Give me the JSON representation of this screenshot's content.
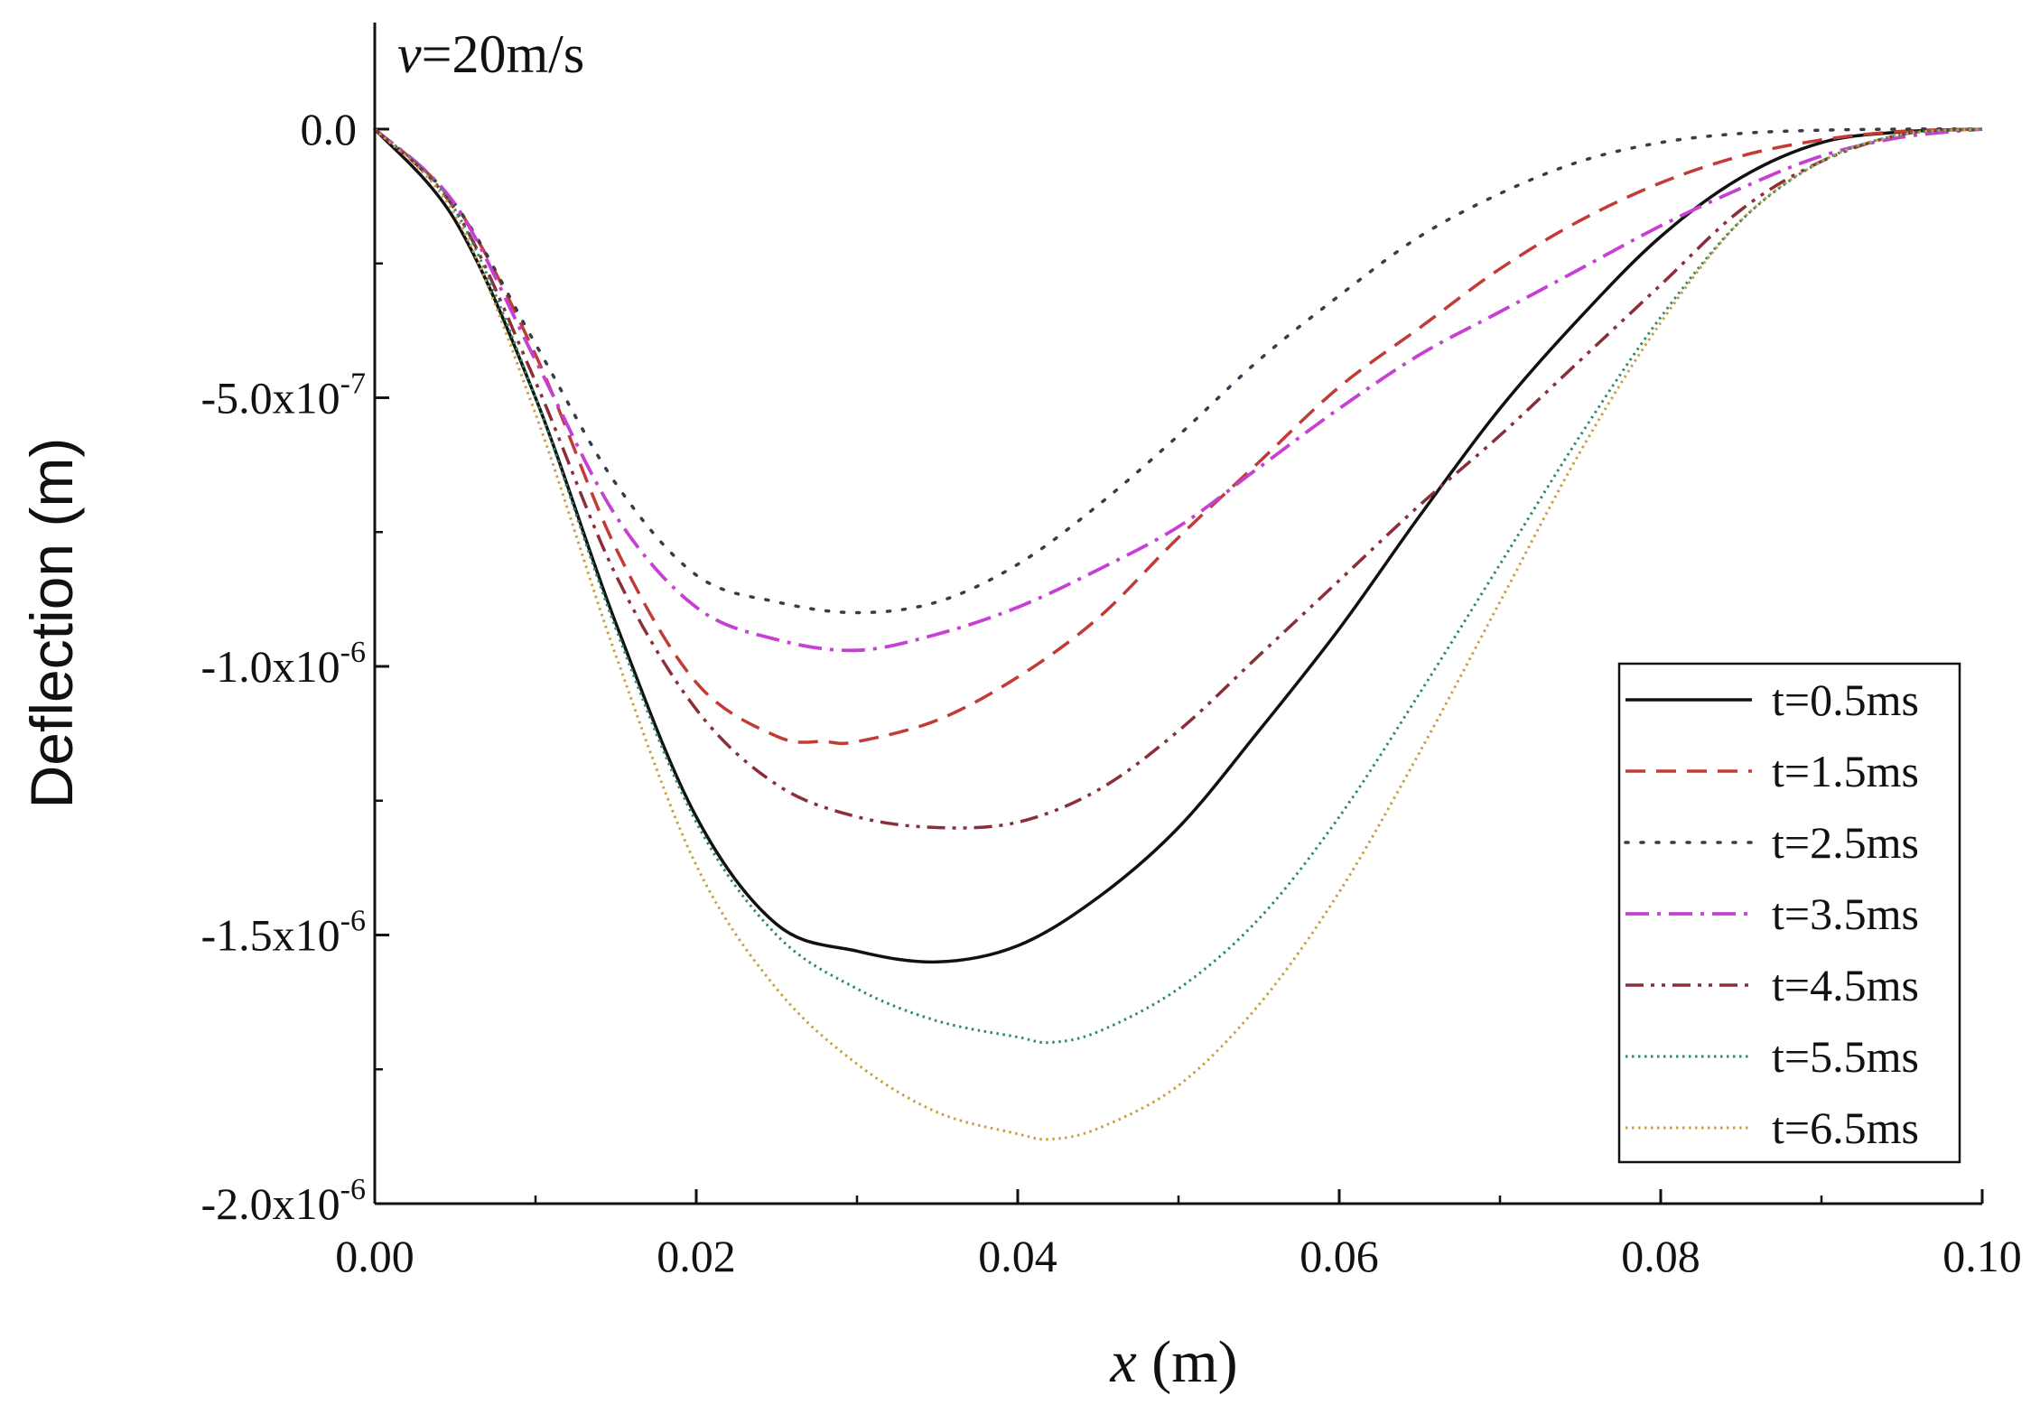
{
  "chart_data": {
    "type": "line",
    "title": "",
    "annotation": {
      "var": "v",
      "rest": "=20m/s"
    },
    "xlabel": {
      "var": "x",
      "rest": " (m)"
    },
    "ylabel": "Deflection (m)",
    "xlim": [
      0,
      0.1
    ],
    "ylim": [
      -2e-06,
      1.8e-07
    ],
    "xticks": [
      {
        "value": 0.0,
        "label": "0.00"
      },
      {
        "value": 0.02,
        "label": "0.02"
      },
      {
        "value": 0.04,
        "label": "0.04"
      },
      {
        "value": 0.06,
        "label": "0.06"
      },
      {
        "value": 0.08,
        "label": "0.08"
      },
      {
        "value": 0.1,
        "label": "0.10"
      }
    ],
    "yticks": [
      {
        "value": 0.0,
        "mant": "0.0",
        "exp": ""
      },
      {
        "value": -5e-07,
        "mant": "-5.0x10",
        "exp": "-7"
      },
      {
        "value": -1e-06,
        "mant": "-1.0x10",
        "exp": "-6"
      },
      {
        "value": -1.5e-06,
        "mant": "-1.5x10",
        "exp": "-6"
      },
      {
        "value": -2e-06,
        "mant": "-2.0x10",
        "exp": "-6"
      }
    ],
    "legend_position": "bottom-right",
    "series": [
      {
        "name": "t=0.5ms",
        "color": "#111111",
        "dash": "solid",
        "x": [
          0,
          0.005,
          0.01,
          0.015,
          0.02,
          0.025,
          0.03,
          0.035,
          0.04,
          0.045,
          0.05,
          0.055,
          0.06,
          0.065,
          0.07,
          0.075,
          0.08,
          0.085,
          0.09,
          0.095,
          0.1
        ],
        "y": [
          0,
          -1.7e-07,
          -5e-07,
          -9.2e-07,
          -1.28e-06,
          -1.48e-06,
          -1.53e-06,
          -1.55e-06,
          -1.52e-06,
          -1.43e-06,
          -1.3e-06,
          -1.12e-06,
          -9.3e-07,
          -7.2e-07,
          -5.2e-07,
          -3.5e-07,
          -2e-07,
          -9e-08,
          -2.5e-08,
          -5e-09,
          0
        ]
      },
      {
        "name": "t=1.5ms",
        "color": "#c23b35",
        "dash": "long-dash",
        "x": [
          0,
          0.005,
          0.01,
          0.015,
          0.02,
          0.025,
          0.028,
          0.03,
          0.035,
          0.04,
          0.045,
          0.05,
          0.055,
          0.06,
          0.065,
          0.07,
          0.075,
          0.08,
          0.085,
          0.09,
          0.095,
          0.1
        ],
        "y": [
          0,
          -1.4e-07,
          -4.2e-07,
          -7.8e-07,
          -1.03e-06,
          -1.13e-06,
          -1.14e-06,
          -1.14e-06,
          -1.1e-06,
          -1.02e-06,
          -9.1e-07,
          -7.6e-07,
          -6.2e-07,
          -4.8e-07,
          -3.7e-07,
          -2.6e-07,
          -1.7e-07,
          -1e-07,
          -5e-08,
          -2e-08,
          -4e-09,
          0
        ]
      },
      {
        "name": "t=2.5ms",
        "color": "#3a3a4a",
        "dash": "dot",
        "x": [
          0,
          0.005,
          0.01,
          0.015,
          0.02,
          0.025,
          0.03,
          0.035,
          0.04,
          0.045,
          0.05,
          0.055,
          0.06,
          0.065,
          0.07,
          0.075,
          0.08,
          0.085,
          0.09,
          0.095,
          0.1
        ],
        "y": [
          0,
          -1.4e-07,
          -4e-07,
          -6.6e-07,
          -8.3e-07,
          -8.8e-07,
          -9e-07,
          -8.8e-07,
          -8.1e-07,
          -7e-07,
          -5.7e-07,
          -4.3e-07,
          -3.1e-07,
          -2e-07,
          -1.2e-07,
          -6e-08,
          -2.5e-08,
          -8e-09,
          -2e-09,
          0,
          0
        ]
      },
      {
        "name": "t=3.5ms",
        "color": "#c640d4",
        "dash": "dash-dot",
        "x": [
          0,
          0.005,
          0.01,
          0.015,
          0.02,
          0.025,
          0.03,
          0.035,
          0.04,
          0.045,
          0.05,
          0.055,
          0.06,
          0.065,
          0.07,
          0.075,
          0.08,
          0.085,
          0.09,
          0.095,
          0.1
        ],
        "y": [
          0,
          -1.4e-07,
          -4.3e-07,
          -7.2e-07,
          -8.9e-07,
          -9.5e-07,
          -9.7e-07,
          -9.4e-07,
          -8.9e-07,
          -8.2e-07,
          -7.4e-07,
          -6.3e-07,
          -5.2e-07,
          -4.2e-07,
          -3.4e-07,
          -2.6e-07,
          -1.8e-07,
          -1.1e-07,
          -5e-08,
          -1.5e-08,
          0
        ]
      },
      {
        "name": "t=4.5ms",
        "color": "#8b2e3a",
        "dash": "dash-dot-dot",
        "x": [
          0,
          0.005,
          0.01,
          0.015,
          0.02,
          0.025,
          0.03,
          0.035,
          0.04,
          0.045,
          0.05,
          0.055,
          0.06,
          0.065,
          0.07,
          0.075,
          0.08,
          0.085,
          0.09,
          0.095,
          0.1
        ],
        "y": [
          0,
          -1.5e-07,
          -4.7e-07,
          -8.3e-07,
          -1.08e-06,
          -1.22e-06,
          -1.28e-06,
          -1.3e-06,
          -1.29e-06,
          -1.23e-06,
          -1.12e-06,
          -9.8e-07,
          -8.4e-07,
          -7e-07,
          -5.7e-07,
          -4.3e-07,
          -2.9e-07,
          -1.5e-07,
          -6e-08,
          -1e-08,
          0
        ]
      },
      {
        "name": "t=5.5ms",
        "color": "#2e8b6a",
        "dash": "fine-dot",
        "x": [
          0,
          0.005,
          0.01,
          0.015,
          0.02,
          0.025,
          0.03,
          0.035,
          0.04,
          0.042,
          0.045,
          0.05,
          0.055,
          0.06,
          0.065,
          0.07,
          0.075,
          0.08,
          0.085,
          0.09,
          0.095,
          0.1
        ],
        "y": [
          0,
          -1.5e-07,
          -5e-07,
          -9.3e-07,
          -1.29e-06,
          -1.5e-06,
          -1.6e-06,
          -1.66e-06,
          -1.69e-06,
          -1.7e-06,
          -1.68e-06,
          -1.6e-06,
          -1.47e-06,
          -1.28e-06,
          -1.05e-06,
          -8.1e-07,
          -5.7e-07,
          -3.5e-07,
          -1.7e-07,
          -6e-08,
          -1e-08,
          0
        ]
      },
      {
        "name": "t=6.5ms",
        "color": "#c8a040",
        "dash": "fine-dot",
        "x": [
          0,
          0.005,
          0.01,
          0.015,
          0.02,
          0.025,
          0.03,
          0.035,
          0.04,
          0.042,
          0.045,
          0.05,
          0.055,
          0.06,
          0.065,
          0.07,
          0.075,
          0.08,
          0.085,
          0.09,
          0.095,
          0.1
        ],
        "y": [
          0,
          -1.6e-07,
          -5.3e-07,
          -9.8e-07,
          -1.37e-06,
          -1.6e-06,
          -1.74e-06,
          -1.83e-06,
          -1.87e-06,
          -1.88e-06,
          -1.86e-06,
          -1.78e-06,
          -1.63e-06,
          -1.42e-06,
          -1.16e-06,
          -8.8e-07,
          -6e-07,
          -3.6e-07,
          -1.7e-07,
          -6e-08,
          -1e-08,
          0
        ]
      }
    ]
  }
}
